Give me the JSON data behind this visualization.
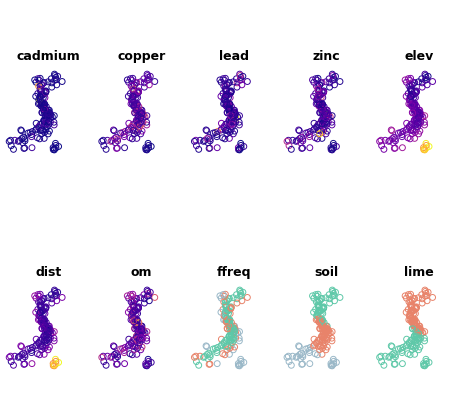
{
  "panels_row1": [
    "cadmium",
    "copper",
    "lead",
    "zinc",
    "elev"
  ],
  "panels_row2": [
    "dist",
    "om",
    "ffreq",
    "soil",
    "lime"
  ],
  "background": "#ffffff",
  "title_fontsize": 9,
  "title_fontweight": "bold",
  "markersize": 18,
  "linewidth": 0.7,
  "cat3_colors_ffreq": [
    "#5ec8a8",
    "#e8836a",
    "#9ab8c8"
  ],
  "cat3_colors_soil": [
    "#5ec8a8",
    "#e8836a",
    "#9ab8c8"
  ],
  "cat2_colors_lime": [
    "#5ec8a8",
    "#e8836a"
  ]
}
